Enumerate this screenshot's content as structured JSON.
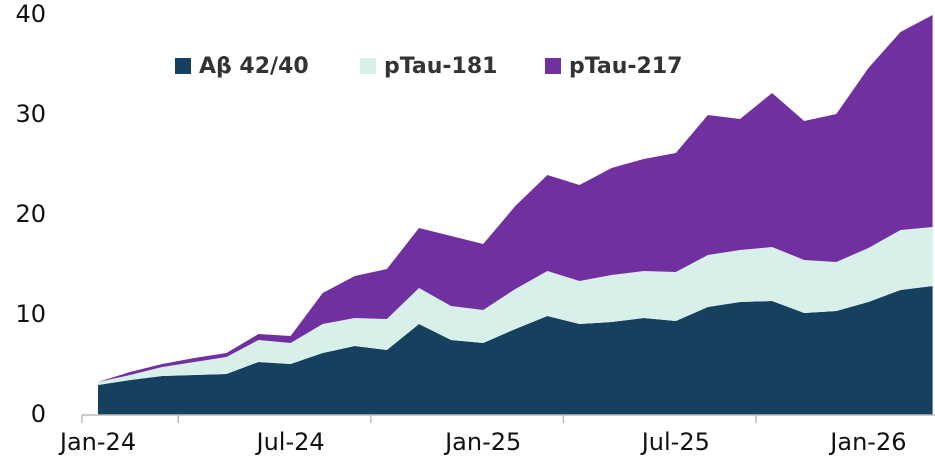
{
  "chart_data": {
    "type": "stacked_area",
    "categories": [
      "Jan-24",
      null,
      null,
      null,
      null,
      null,
      "Jul-24",
      null,
      null,
      null,
      null,
      null,
      "Jan-25",
      null,
      null,
      null,
      null,
      null,
      "Jul-25",
      null,
      null,
      null,
      null,
      null,
      "Jan-26",
      null,
      null
    ],
    "series": [
      {
        "name": "Aβ 42/40",
        "color": "#16405f",
        "values": [
          3.0,
          3.5,
          3.9,
          4.0,
          4.1,
          5.3,
          5.1,
          6.2,
          6.9,
          6.5,
          9.1,
          7.5,
          7.2,
          8.6,
          9.9,
          9.1,
          9.3,
          9.7,
          9.4,
          10.8,
          11.3,
          11.4,
          10.2,
          10.4,
          11.3,
          12.5,
          12.9
        ]
      },
      {
        "name": "pTau-181",
        "color": "#d9efe9",
        "values": [
          0.3,
          0.5,
          0.9,
          1.3,
          1.7,
          2.2,
          2.1,
          2.9,
          2.8,
          3.1,
          3.6,
          3.4,
          3.3,
          4.0,
          4.5,
          4.3,
          4.7,
          4.7,
          4.9,
          5.2,
          5.2,
          5.4,
          5.3,
          4.9,
          5.4,
          6.0,
          5.9
        ]
      },
      {
        "name": "pTau-217",
        "color": "#7030a0",
        "values": [
          0,
          0.3,
          0.3,
          0.4,
          0.4,
          0.6,
          0.7,
          3.1,
          4.2,
          5.0,
          6.0,
          7.0,
          6.6,
          8.3,
          9.6,
          9.6,
          10.7,
          11.2,
          11.9,
          14.0,
          13.1,
          15.4,
          13.9,
          14.8,
          18.0,
          19.8,
          21.2
        ]
      }
    ],
    "ylim": [
      0,
      40
    ],
    "yticks": [
      0,
      10,
      20,
      30,
      40
    ],
    "grid": false,
    "legend": "top"
  }
}
